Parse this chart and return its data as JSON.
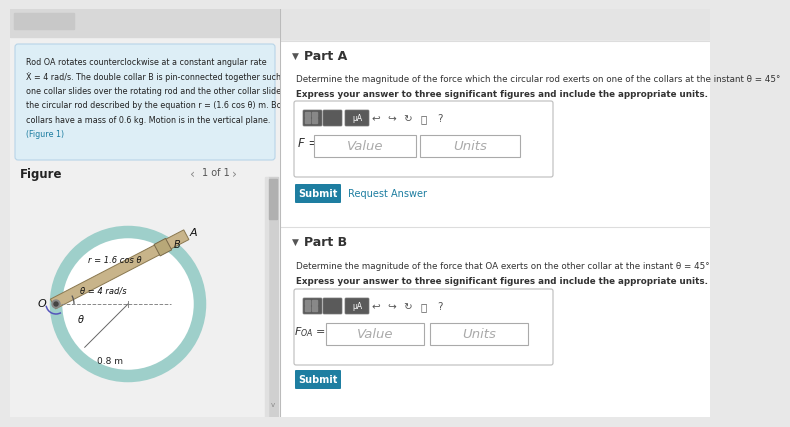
{
  "bg_color": "#e8e8e8",
  "left_panel_bg": "#f0f0f0",
  "problem_box_bg": "#ddeef6",
  "problem_box_edge": "#b8d4e8",
  "right_white_bg": "#ffffff",
  "divider_color": "#cccccc",
  "problem_text_lines": [
    "Rod OA rotates counterclockwise at a constant angular rate",
    "Ẋ = 4 rad/s. The double collar B is pin-connected together such that",
    "one collar slides over the rotating rod and the other collar slides over",
    "the circular rod described by the equation r = (1.6 cos θ) m. Both",
    "collars have a mass of 0.6 kg. Motion is in the vertical plane.",
    "(Figure 1)"
  ],
  "figure_label": "Figure",
  "page_label": "1 of 1",
  "circle_color": "#9ecfca",
  "circle_lw": 9,
  "rod_face": "#c8b48a",
  "rod_edge": "#8a7850",
  "collar_face": "#b8a878",
  "collar_edge": "#786848",
  "label_A": "A",
  "label_B": "B",
  "label_O": "O",
  "label_r": "r = 1.6 cos θ",
  "label_theta_dot": "θ̇ = 4 rad/s",
  "label_theta": "θ",
  "label_dim": "0.8 m",
  "part_a_header": "Part A",
  "part_a_desc1": "Determine the magnitude of the force which the circular rod exerts on one of the collars at the instant θ = 45°",
  "part_a_desc2": "Express your answer to three significant figures and include the appropriate units.",
  "part_a_label": "F =",
  "part_a_val": "Value",
  "part_a_units": "Units",
  "submit_text": "Submit",
  "request_text": "Request Answer",
  "part_b_header": "Part B",
  "part_b_desc1": "Determine the magnitude of the force that OA exerts on the other collar at the instant θ = 45°",
  "part_b_desc2": "Express your answer to three significant figures and include the appropriate units.",
  "part_b_label": "F_{OA} =",
  "part_b_val": "Value",
  "part_b_units": "Units",
  "teal_btn": "#1e7ea1",
  "link_color": "#1e7ea1",
  "toolbar_dark": "#5a5a5a",
  "toolbar_med": "#6a6a6a"
}
